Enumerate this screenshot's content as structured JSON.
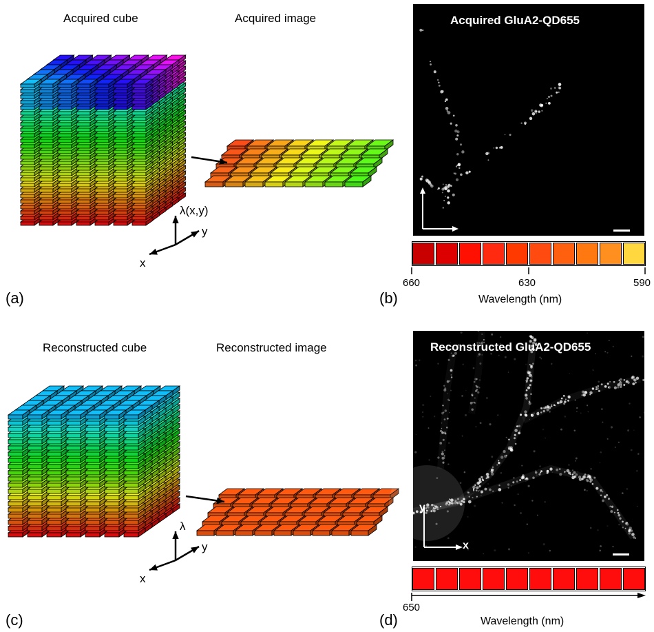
{
  "panel_a": {
    "letter": "(a)",
    "cube_title": "Acquired cube",
    "image_title": "Acquired image",
    "axis_x": "x",
    "axis_y": "y",
    "axis_lambda": "λ(x,y)"
  },
  "panel_b": {
    "letter": "(b)",
    "image_title": "Acquired GluA2-QD655",
    "swatch_colors": [
      "#c80000",
      "#dc0000",
      "#ff1000",
      "#ff2a10",
      "#ff3a00",
      "#ff4a10",
      "#ff6010",
      "#ff7810",
      "#ff9020",
      "#ffd840"
    ],
    "tick_left": "660",
    "tick_mid": "630",
    "tick_right": "590",
    "wavelength_label": "Wavelength (nm)"
  },
  "panel_c": {
    "letter": "(c)",
    "cube_title": "Reconstructed cube",
    "image_title": "Reconstructed image",
    "axis_x": "x",
    "axis_y": "y",
    "axis_lambda": "λ"
  },
  "panel_d": {
    "letter": "(d)",
    "image_title": "Reconstructed GluA2-QD655",
    "axis_x": "x",
    "axis_y": "y",
    "swatch_color": "#ff0d0d",
    "tick_left": "650",
    "wavelength_label": "Wavelength (nm)"
  }
}
